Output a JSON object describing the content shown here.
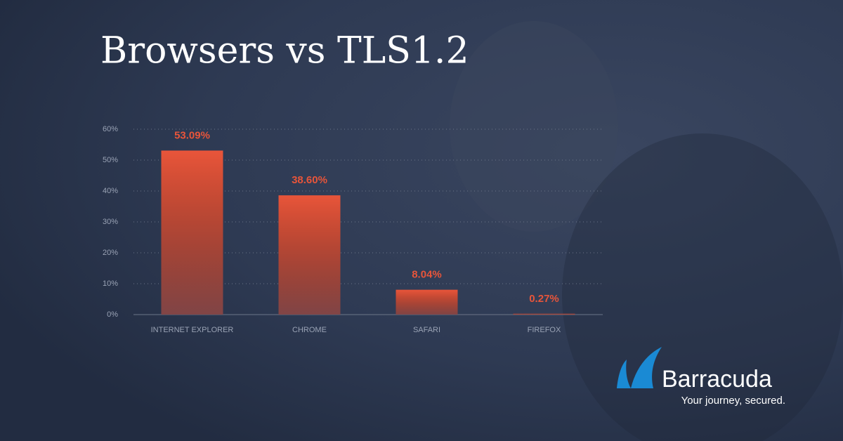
{
  "chart_data": {
    "type": "bar",
    "title": "Browsers vs TLS1.2",
    "categories": [
      "INTERNET EXPLORER",
      "CHROME",
      "SAFARI",
      "FIREFOX"
    ],
    "values": [
      53.09,
      38.6,
      8.04,
      0.27
    ],
    "value_labels": [
      "53.09%",
      "38.60%",
      "8.04%",
      "0.27%"
    ],
    "color": "#e8553a",
    "ylim": [
      0,
      60
    ],
    "yticks": [
      {
        "value": 0,
        "label": "0%"
      },
      {
        "value": 10,
        "label": "10%"
      },
      {
        "value": 20,
        "label": "20%"
      },
      {
        "value": 30,
        "label": "30%"
      },
      {
        "value": 40,
        "label": "40%"
      },
      {
        "value": 50,
        "label": "50%"
      },
      {
        "value": 60,
        "label": "60%"
      }
    ],
    "grid": true
  },
  "logo": {
    "name": "Barracuda",
    "tagline": "Your journey, secured."
  }
}
